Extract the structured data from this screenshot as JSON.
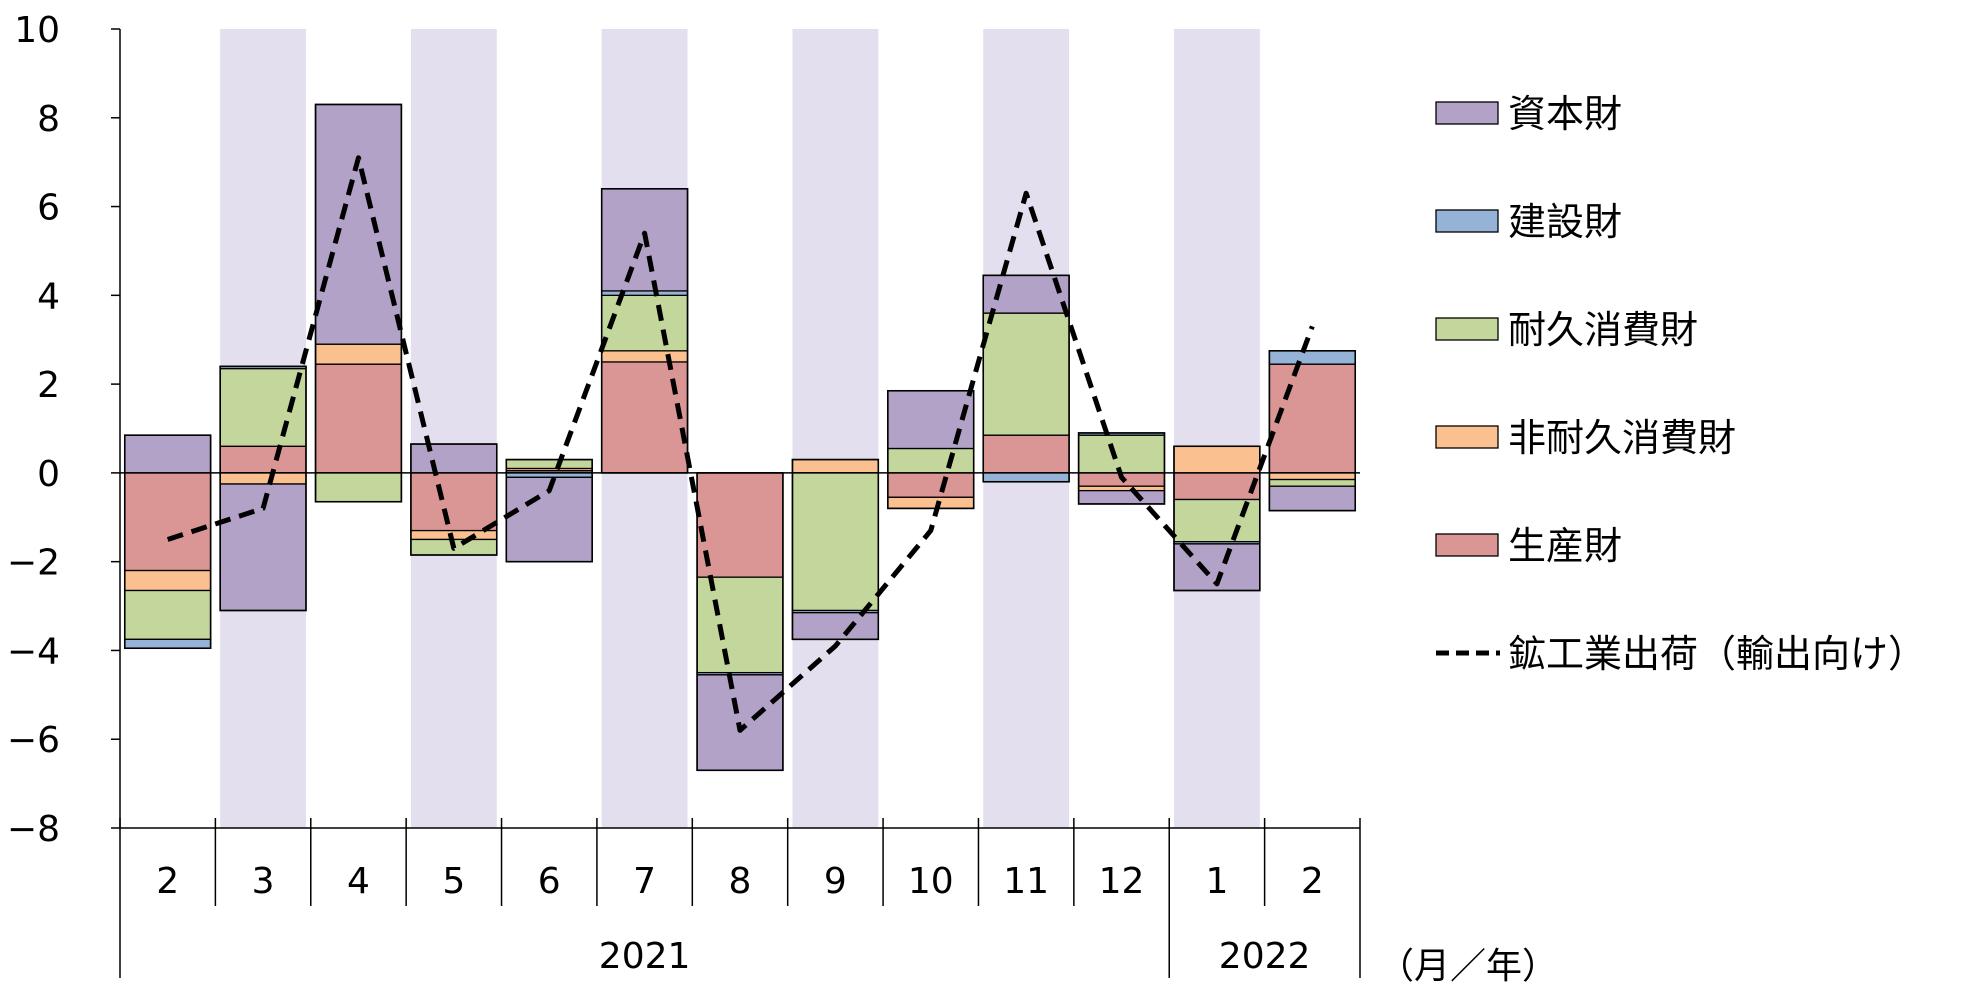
{
  "chart_data": {
    "type": "bar",
    "stacked": true,
    "ylim": [
      -8,
      10
    ],
    "yticks": [
      -8,
      -6,
      -4,
      -2,
      0,
      2,
      4,
      6,
      8,
      10
    ],
    "ytick_labels": [
      "−8",
      "−6",
      "−4",
      "−2",
      "0",
      "2",
      "4",
      "6",
      "8",
      "10"
    ],
    "categories": [
      "2",
      "3",
      "4",
      "5",
      "6",
      "7",
      "8",
      "9",
      "10",
      "11",
      "12",
      "1",
      "2"
    ],
    "year_groups": [
      {
        "label": "2021",
        "start": 0,
        "end": 10
      },
      {
        "label": "2022",
        "start": 11,
        "end": 12
      }
    ],
    "unit_label": "（月／年）",
    "shaded_columns": [
      1,
      3,
      5,
      7,
      9,
      11
    ],
    "shade_color": "#e4dfee",
    "series": [
      {
        "name": "生産財",
        "color": "#d99694",
        "values": [
          -2.2,
          0.6,
          2.45,
          -1.3,
          0.05,
          2.5,
          -2.35,
          0.0,
          -0.55,
          0.85,
          -0.3,
          -0.6,
          2.45
        ]
      },
      {
        "name": "非耐久消費財",
        "color": "#fac090",
        "values": [
          -0.45,
          -0.25,
          0.45,
          -0.2,
          0.05,
          0.25,
          0.0,
          0.3,
          -0.25,
          0.0,
          -0.1,
          0.6,
          -0.15
        ]
      },
      {
        "name": "耐久消費財",
        "color": "#c3d69b",
        "values": [
          -1.1,
          1.75,
          -0.65,
          -0.35,
          0.2,
          1.25,
          -2.15,
          -3.1,
          0.55,
          2.75,
          0.85,
          -0.95,
          -0.15
        ]
      },
      {
        "name": "建設財",
        "color": "#95b3d7",
        "values": [
          -0.2,
          0.05,
          0.0,
          0.0,
          -0.1,
          0.1,
          -0.05,
          -0.05,
          0.0,
          -0.2,
          0.05,
          -0.05,
          0.3
        ]
      },
      {
        "name": "資本財",
        "color": "#b2a2c7",
        "values": [
          0.85,
          -2.85,
          5.4,
          0.65,
          -1.9,
          2.3,
          -2.15,
          -0.6,
          1.3,
          0.85,
          -0.3,
          -1.05,
          -0.55
        ]
      }
    ],
    "line": {
      "name": "鉱工業出荷（輸出向け）",
      "color": "#000000",
      "values": [
        -1.5,
        -0.8,
        7.1,
        -1.7,
        -0.4,
        5.4,
        -5.8,
        -3.9,
        -1.3,
        6.3,
        -0.1,
        -2.5,
        3.3
      ]
    },
    "legend": {
      "position": "right",
      "items": [
        {
          "label": "資本財",
          "color": "#b2a2c7",
          "kind": "bar"
        },
        {
          "label": "建設財",
          "color": "#95b3d7",
          "kind": "bar"
        },
        {
          "label": "耐久消費財",
          "color": "#c3d69b",
          "kind": "bar"
        },
        {
          "label": "非耐久消費財",
          "color": "#fac090",
          "kind": "bar"
        },
        {
          "label": "生産財",
          "color": "#d99694",
          "kind": "bar"
        },
        {
          "label": "鉱工業出荷（輸出向け）",
          "color": "#000000",
          "kind": "line"
        }
      ]
    }
  }
}
